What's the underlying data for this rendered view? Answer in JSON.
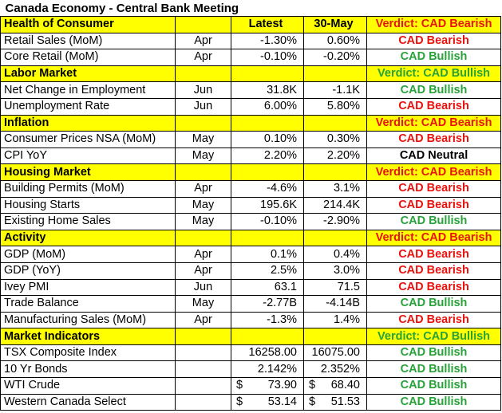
{
  "title": "Canada Economy - Central Bank Meeting",
  "header": {
    "col_latest": "Latest",
    "col_prev": "30-May"
  },
  "colors": {
    "section_fill": "#ffff00",
    "bearish": "#e8130f",
    "bullish": "#27a33a",
    "neutral": "#000000"
  },
  "sections": [
    {
      "name": "Health of Consumer",
      "verdict": "Verdict: CAD Bearish",
      "verdict_tone": "bear",
      "show_headers": true,
      "rows": [
        {
          "label": "Retail Sales (MoM)",
          "period": "Apr",
          "latest": "-1.30%",
          "prev": "0.60%",
          "signal": "CAD Bearish",
          "tone": "bear"
        },
        {
          "label": "Core Retail (MoM)",
          "period": "Apr",
          "latest": "-0.10%",
          "prev": "-0.20%",
          "signal": "CAD Bullish",
          "tone": "bull"
        }
      ]
    },
    {
      "name": "Labor Market",
      "verdict": "Verdict: CAD Bullish",
      "verdict_tone": "bull",
      "rows": [
        {
          "label": "Net Change in Employment",
          "period": "Jun",
          "latest": "31.8K",
          "prev": "-1.1K",
          "signal": "CAD Bullish",
          "tone": "bull"
        },
        {
          "label": "Unemployment Rate",
          "period": "Jun",
          "latest": "6.00%",
          "prev": "5.80%",
          "signal": "CAD Bearish",
          "tone": "bear"
        }
      ]
    },
    {
      "name": "Inflation",
      "verdict": "Verdict: CAD Bearish",
      "verdict_tone": "bear",
      "rows": [
        {
          "label": "Consumer Prices NSA (MoM)",
          "period": "May",
          "latest": "0.10%",
          "prev": "0.30%",
          "signal": "CAD Bearish",
          "tone": "bear"
        },
        {
          "label": "CPI YoY",
          "period": "May",
          "latest": "2.20%",
          "prev": "2.20%",
          "signal": "CAD Neutral",
          "tone": "neutral"
        }
      ]
    },
    {
      "name": "Housing Market",
      "verdict": "Verdict: CAD Bearish",
      "verdict_tone": "bear",
      "rows": [
        {
          "label": "Building Permits (MoM)",
          "period": "Apr",
          "latest": "-4.6%",
          "prev": "3.1%",
          "signal": "CAD Bearish",
          "tone": "bear"
        },
        {
          "label": "Housing Starts",
          "period": "May",
          "latest": "195.6K",
          "prev": "214.4K",
          "signal": "CAD Bearish",
          "tone": "bear"
        },
        {
          "label": "Existing Home Sales",
          "period": "May",
          "latest": "-0.10%",
          "prev": "-2.90%",
          "signal": "CAD Bullish",
          "tone": "bull"
        }
      ]
    },
    {
      "name": "Activity",
      "verdict": "Verdict: CAD Bearish",
      "verdict_tone": "bear",
      "rows": [
        {
          "label": "GDP (MoM)",
          "period": "Apr",
          "latest": "0.1%",
          "prev": "0.4%",
          "signal": "CAD Bearish",
          "tone": "bear"
        },
        {
          "label": "GDP (YoY)",
          "period": "Apr",
          "latest": "2.5%",
          "prev": "3.0%",
          "signal": "CAD Bearish",
          "tone": "bear"
        },
        {
          "label": "Ivey PMI",
          "period": "Jun",
          "latest": "63.1",
          "prev": "71.5",
          "signal": "CAD Bearish",
          "tone": "bear"
        },
        {
          "label": "Trade Balance",
          "period": "May",
          "latest": "-2.77B",
          "prev": "-4.14B",
          "signal": "CAD Bullish",
          "tone": "bull"
        },
        {
          "label": "Manufacturing Sales (MoM)",
          "period": "Apr",
          "latest": "-1.3%",
          "prev": "1.4%",
          "signal": "CAD Bearish",
          "tone": "bear"
        }
      ]
    },
    {
      "name": "Market Indicators",
      "verdict": "Verdict: CAD Bullish",
      "verdict_tone": "bull",
      "rows": [
        {
          "label": "TSX Composite Index",
          "period": "",
          "latest": "16258.00",
          "prev": "16075.00",
          "signal": "CAD Bullish",
          "tone": "bull"
        },
        {
          "label": "10 Yr Bonds",
          "period": "",
          "latest": "2.142%",
          "prev": "2.352%",
          "signal": "CAD Bullish",
          "tone": "bull"
        },
        {
          "label": "WTI Crude",
          "period": "",
          "currency": "$",
          "latest": "73.90",
          "prev": "68.40",
          "signal": "CAD Bullish",
          "tone": "bull"
        },
        {
          "label": "Western Canada Select",
          "period": "",
          "currency": "$",
          "latest": "53.14",
          "prev": "51.53",
          "signal": "CAD Bullish",
          "tone": "bull"
        }
      ]
    }
  ]
}
